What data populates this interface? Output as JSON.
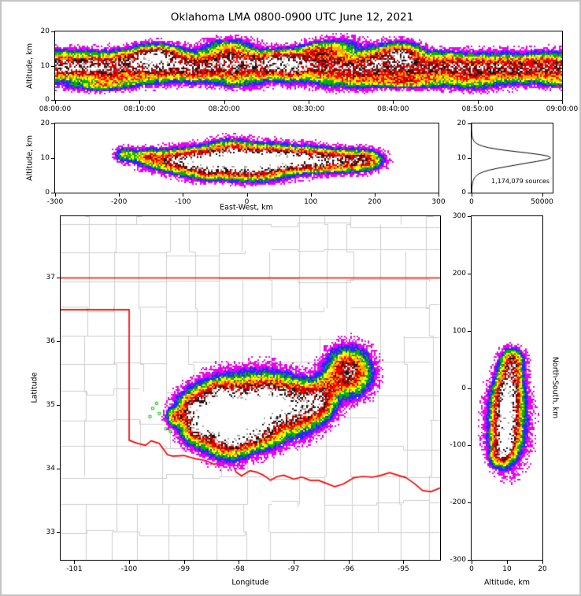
{
  "title": "Oklahoma LMA 0800-0900 UTC June 12, 2021",
  "chart_data": {
    "type": "heatmap",
    "colormap": [
      {
        "upto": 0.1,
        "color": "#ee00ee"
      },
      {
        "upto": 0.19,
        "color": "#2828ff"
      },
      {
        "upto": 0.29,
        "color": "#00b400"
      },
      {
        "upto": 0.39,
        "color": "#ffff00"
      },
      {
        "upto": 0.5,
        "color": "#ffa000"
      },
      {
        "upto": 0.67,
        "color": "#ff0000"
      },
      {
        "upto": 0.77,
        "color": "#a80000"
      },
      {
        "upto": 0.88,
        "color": "#141414"
      },
      {
        "upto": 0.95,
        "color": "#a8a8a8"
      },
      {
        "upto": 9.0,
        "color": "#ffffff"
      }
    ],
    "panels": {
      "time_height": {
        "ylabel": "Altitude, km",
        "x_range": [
          0,
          60
        ],
        "y_range": [
          0,
          20
        ],
        "x_ticks": [
          {
            "v": 0,
            "label": "08:00:00"
          },
          {
            "v": 10,
            "label": "08:10:00"
          },
          {
            "v": 20,
            "label": "08:20:00"
          },
          {
            "v": 30,
            "label": "08:30:00"
          },
          {
            "v": 40,
            "label": "08:40:00"
          },
          {
            "v": 50,
            "label": "08:50:00"
          },
          {
            "v": 60,
            "label": "09:00:00"
          }
        ],
        "y_ticks": [
          {
            "v": 0,
            "label": "0"
          },
          {
            "v": 10,
            "label": "10"
          },
          {
            "v": 20,
            "label": "20"
          }
        ],
        "model": {
          "center_km": 9.8,
          "sigma_km": 2.3,
          "amp_base": 0.95,
          "towers": 14,
          "seed": 11
        }
      },
      "east_west": {
        "xlabel": "East-West, km",
        "ylabel": "Altitude, km",
        "x_range": [
          -300,
          300
        ],
        "y_range": [
          0,
          20
        ],
        "x_ticks": [
          {
            "v": -300,
            "label": "-300"
          },
          {
            "v": -200,
            "label": "-200"
          },
          {
            "v": -100,
            "label": "-100"
          },
          {
            "v": 0,
            "label": "0"
          },
          {
            "v": 100,
            "label": "100"
          },
          {
            "v": 200,
            "label": "200"
          },
          {
            "v": 300,
            "label": "300"
          }
        ],
        "y_ticks": [
          {
            "v": 0,
            "label": "0"
          },
          {
            "v": 10,
            "label": "10"
          },
          {
            "v": 20,
            "label": "20"
          }
        ],
        "seed": 23,
        "blobs": [
          {
            "x": -20,
            "y": 9.3,
            "sx": 48,
            "sy": 2.3,
            "a": 1.1
          },
          {
            "x": 35,
            "y": 9.6,
            "sx": 35,
            "sy": 2.1,
            "a": 0.95
          },
          {
            "x": 90,
            "y": 9.4,
            "sx": 30,
            "sy": 1.9,
            "a": 0.85
          },
          {
            "x": 145,
            "y": 9.2,
            "sx": 28,
            "sy": 1.8,
            "a": 0.75
          },
          {
            "x": 185,
            "y": 9.5,
            "sx": 15,
            "sy": 1.6,
            "a": 0.55
          },
          {
            "x": -70,
            "y": 8.9,
            "sx": 26,
            "sy": 1.9,
            "a": 0.8
          },
          {
            "x": -115,
            "y": 9.2,
            "sx": 22,
            "sy": 1.7,
            "a": 0.6
          },
          {
            "x": -155,
            "y": 10.2,
            "sx": 14,
            "sy": 1.4,
            "a": 0.45
          },
          {
            "x": -190,
            "y": 11.0,
            "sx": 10,
            "sy": 1.2,
            "a": 0.35
          },
          {
            "x": -25,
            "y": 12.5,
            "sx": 18,
            "sy": 1.8,
            "a": 0.35
          },
          {
            "x": 10,
            "y": 5.8,
            "sx": 30,
            "sy": 1.6,
            "a": 0.45
          },
          {
            "x": -60,
            "y": 5.5,
            "sx": 18,
            "sy": 1.3,
            "a": 0.3
          }
        ]
      },
      "histogram": {
        "sources_label": "1,174,079 sources",
        "x_range": [
          0,
          57500
        ],
        "y_range": [
          0,
          20
        ],
        "x_ticks": [
          {
            "v": 0,
            "label": "0"
          },
          {
            "v": 50000,
            "label": "50000"
          }
        ],
        "y_ticks": [
          {
            "v": 0,
            "label": "0"
          },
          {
            "v": 10,
            "label": "10"
          },
          {
            "v": 20,
            "label": "20"
          }
        ],
        "profile": [
          [
            0,
            80
          ],
          [
            0.5,
            120
          ],
          [
            1,
            180
          ],
          [
            1.5,
            260
          ],
          [
            2,
            380
          ],
          [
            2.5,
            540
          ],
          [
            3,
            780
          ],
          [
            3.5,
            1150
          ],
          [
            4,
            1700
          ],
          [
            4.5,
            2500
          ],
          [
            5,
            3700
          ],
          [
            5.5,
            5500
          ],
          [
            6,
            8200
          ],
          [
            6.5,
            12500
          ],
          [
            7,
            18000
          ],
          [
            7.5,
            24500
          ],
          [
            8,
            31500
          ],
          [
            8.5,
            38500
          ],
          [
            9,
            46000
          ],
          [
            9.5,
            52500
          ],
          [
            10,
            56000
          ],
          [
            10.5,
            55000
          ],
          [
            11,
            48500
          ],
          [
            11.5,
            39000
          ],
          [
            12,
            28500
          ],
          [
            12.5,
            19000
          ],
          [
            13,
            12000
          ],
          [
            13.5,
            7400
          ],
          [
            14,
            4400
          ],
          [
            14.5,
            2600
          ],
          [
            15,
            1550
          ],
          [
            15.5,
            920
          ],
          [
            16,
            560
          ],
          [
            16.5,
            340
          ],
          [
            17,
            200
          ],
          [
            17.5,
            120
          ],
          [
            18,
            70
          ],
          [
            18.5,
            40
          ],
          [
            19,
            22
          ],
          [
            19.5,
            12
          ],
          [
            20,
            6
          ]
        ]
      },
      "plan_view": {
        "xlabel": "Longitude",
        "ylabel": "Latitude",
        "x_range": [
          -101.25,
          -94.33
        ],
        "y_range": [
          32.57,
          37.97
        ],
        "x_ticks": [
          {
            "v": -101,
            "label": "-101"
          },
          {
            "v": -100,
            "label": "-100"
          },
          {
            "v": -99,
            "label": "-99"
          },
          {
            "v": -98,
            "label": "-98"
          },
          {
            "v": -97,
            "label": "-97"
          },
          {
            "v": -96,
            "label": "-96"
          },
          {
            "v": -95,
            "label": "-95"
          }
        ],
        "y_ticks": [
          {
            "v": 33,
            "label": "33"
          },
          {
            "v": 34,
            "label": "34"
          },
          {
            "v": 35,
            "label": "35"
          },
          {
            "v": 36,
            "label": "36"
          },
          {
            "v": 37,
            "label": "37"
          }
        ],
        "border_color": "#ff0000",
        "county_color": "#cccccc",
        "county_seed": 99,
        "state_border": [
          [
            [
              -101.25,
              37.0
            ],
            [
              -94.33,
              37.0
            ]
          ],
          [
            [
              -101.25,
              36.5
            ],
            [
              -100.0,
              36.5
            ],
            [
              -100.0,
              34.45
            ],
            [
              -99.85,
              34.4
            ],
            [
              -99.7,
              34.37
            ],
            [
              -99.6,
              34.44
            ],
            [
              -99.45,
              34.4
            ],
            [
              -99.3,
              34.22
            ],
            [
              -99.2,
              34.2
            ],
            [
              -99.0,
              34.21
            ],
            [
              -98.8,
              34.16
            ],
            [
              -98.6,
              34.13
            ],
            [
              -98.45,
              34.07
            ],
            [
              -98.3,
              34.12
            ],
            [
              -98.15,
              34.14
            ],
            [
              -98.05,
              33.95
            ],
            [
              -97.95,
              33.89
            ],
            [
              -97.8,
              33.97
            ],
            [
              -97.68,
              33.95
            ],
            [
              -97.55,
              33.9
            ],
            [
              -97.42,
              33.82
            ],
            [
              -97.3,
              33.88
            ],
            [
              -97.18,
              33.9
            ],
            [
              -97.0,
              33.84
            ],
            [
              -96.85,
              33.87
            ],
            [
              -96.7,
              33.82
            ],
            [
              -96.55,
              33.82
            ],
            [
              -96.4,
              33.77
            ],
            [
              -96.25,
              33.72
            ],
            [
              -96.1,
              33.76
            ],
            [
              -95.9,
              33.86
            ],
            [
              -95.75,
              33.88
            ],
            [
              -95.55,
              33.87
            ],
            [
              -95.4,
              33.9
            ],
            [
              -95.25,
              33.94
            ],
            [
              -95.1,
              33.9
            ],
            [
              -94.95,
              33.86
            ],
            [
              -94.8,
              33.77
            ],
            [
              -94.65,
              33.66
            ],
            [
              -94.5,
              33.64
            ],
            [
              -94.33,
              33.7
            ]
          ]
        ],
        "seed": 37,
        "blobs": [
          {
            "x": -97.95,
            "y": 34.93,
            "sx": 0.4,
            "sy": 0.27,
            "a": 1.1
          },
          {
            "x": -98.45,
            "y": 34.78,
            "sx": 0.28,
            "sy": 0.22,
            "a": 0.9
          },
          {
            "x": -98.8,
            "y": 34.95,
            "sx": 0.18,
            "sy": 0.16,
            "a": 0.7
          },
          {
            "x": -97.45,
            "y": 35.05,
            "sx": 0.32,
            "sy": 0.23,
            "a": 0.95
          },
          {
            "x": -96.95,
            "y": 34.97,
            "sx": 0.27,
            "sy": 0.22,
            "a": 0.9
          },
          {
            "x": -96.55,
            "y": 35.07,
            "sx": 0.18,
            "sy": 0.16,
            "a": 0.75
          },
          {
            "x": -98.15,
            "y": 34.48,
            "sx": 0.24,
            "sy": 0.18,
            "a": 0.8
          },
          {
            "x": -97.65,
            "y": 34.6,
            "sx": 0.26,
            "sy": 0.16,
            "a": 0.65
          },
          {
            "x": -98.75,
            "y": 34.62,
            "sx": 0.16,
            "sy": 0.13,
            "a": 0.6
          },
          {
            "x": -96.0,
            "y": 35.52,
            "sx": 0.23,
            "sy": 0.21,
            "a": 0.85
          },
          {
            "x": -96.35,
            "y": 35.3,
            "sx": 0.14,
            "sy": 0.12,
            "a": 0.3
          },
          {
            "x": -99.15,
            "y": 34.82,
            "sx": 0.1,
            "sy": 0.08,
            "a": 0.5
          },
          {
            "x": -98.35,
            "y": 35.15,
            "sx": 0.2,
            "sy": 0.15,
            "a": 0.6
          }
        ],
        "markers": [
          {
            "lon": -99.57,
            "lat": 34.95,
            "color": "#00cc00"
          },
          {
            "lon": -99.5,
            "lat": 35.03,
            "color": "#00cc00"
          },
          {
            "lon": -99.45,
            "lat": 34.87,
            "color": "#00cc00"
          },
          {
            "lon": -99.62,
            "lat": 34.82,
            "color": "#00cc00"
          },
          {
            "lon": -99.33,
            "lat": 34.63,
            "color": "#00cc00"
          },
          {
            "lon": -99.25,
            "lat": 34.59,
            "color": "#00cc00"
          },
          {
            "lon": -98.95,
            "lat": 34.61,
            "color": "#00cc00"
          },
          {
            "lon": -97.78,
            "lat": 34.33,
            "color": "#ffdd00"
          },
          {
            "lon": -97.5,
            "lat": 34.36,
            "color": "#aaff00"
          }
        ]
      },
      "north_south": {
        "xlabel": "Altitude, km",
        "ylabel": "North-South, km",
        "x_range": [
          0,
          20
        ],
        "y_range": [
          -300,
          300
        ],
        "x_ticks": [
          {
            "v": 0,
            "label": "0"
          },
          {
            "v": 10,
            "label": "10"
          },
          {
            "v": 20,
            "label": "20"
          }
        ],
        "y_ticks": [
          {
            "v": 300,
            "label": "300"
          },
          {
            "v": 200,
            "label": "200"
          },
          {
            "v": 100,
            "label": "100"
          },
          {
            "v": 0,
            "label": "0"
          },
          {
            "v": -100,
            "label": "-100"
          },
          {
            "v": -200,
            "label": "-200"
          },
          {
            "v": -300,
            "label": "-300"
          }
        ],
        "seed": 51,
        "blobs": [
          {
            "x": 9.8,
            "y": -52,
            "sx": 2.3,
            "sy": 30,
            "a": 1.1
          },
          {
            "x": 9.4,
            "y": -95,
            "sx": 2.0,
            "sy": 18,
            "a": 0.8
          },
          {
            "x": 10.4,
            "y": -12,
            "sx": 2.1,
            "sy": 18,
            "a": 0.85
          },
          {
            "x": 11.0,
            "y": 22,
            "sx": 1.9,
            "sy": 15,
            "a": 0.7
          },
          {
            "x": 11.5,
            "y": 48,
            "sx": 1.8,
            "sy": 12,
            "a": 0.6
          },
          {
            "x": 8.2,
            "y": -118,
            "sx": 1.7,
            "sy": 12,
            "a": 0.5
          },
          {
            "x": 10.5,
            "y": -60,
            "sx": 3.6,
            "sy": 45,
            "a": 0.22
          }
        ]
      }
    }
  }
}
